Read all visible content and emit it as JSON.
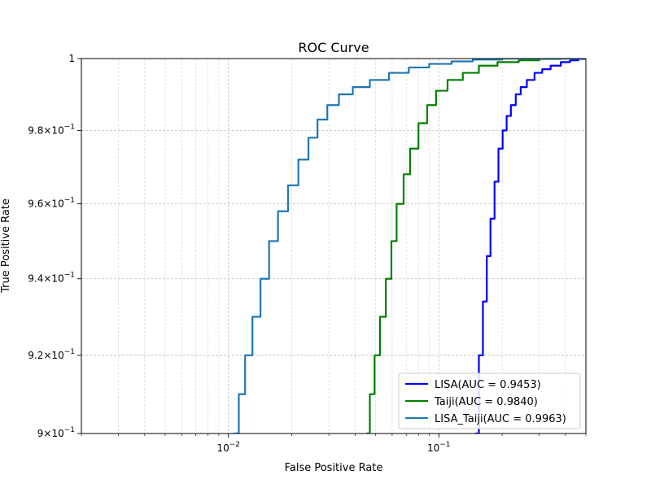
{
  "chart_data": {
    "type": "line",
    "title": "ROC Curve",
    "xlabel": "False Positive Rate",
    "ylabel": "True Positive Rate",
    "x_scale": "log",
    "y_scale": "log",
    "xlim": [
      0.002,
      0.5
    ],
    "ylim": [
      0.9,
      1.0
    ],
    "grid": true,
    "legend_position": "lower-right",
    "x_ticks": [
      {
        "value": 0.01,
        "base": "10",
        "exp": "−2"
      },
      {
        "value": 0.1,
        "base": "10",
        "exp": "−1"
      }
    ],
    "y_ticks": [
      {
        "value": 0.9,
        "mant": "9",
        "exp": "−1"
      },
      {
        "value": 0.92,
        "mant": "9.2",
        "exp": "−1"
      },
      {
        "value": 0.94,
        "mant": "9.4",
        "exp": "−1"
      },
      {
        "value": 0.96,
        "mant": "9.6",
        "exp": "−1"
      },
      {
        "value": 0.98,
        "mant": "9.8",
        "exp": "−1"
      },
      {
        "value": 1.0,
        "label": "1"
      }
    ],
    "series": [
      {
        "name": "LISA(AUC = 0.9453)",
        "color": "#0000ff",
        "x": [
          0.149,
          0.155,
          0.162,
          0.169,
          0.176,
          0.184,
          0.192,
          0.201,
          0.21,
          0.22,
          0.232,
          0.245,
          0.262,
          0.285,
          0.31,
          0.34,
          0.38,
          0.42,
          0.46,
          0.5
        ],
        "y": [
          0.9,
          0.92,
          0.934,
          0.946,
          0.956,
          0.966,
          0.975,
          0.98,
          0.984,
          0.987,
          0.99,
          0.992,
          0.994,
          0.996,
          0.997,
          0.998,
          0.999,
          0.9995,
          0.9999,
          1.0
        ]
      },
      {
        "name": "Taiji(AUC = 0.9840)",
        "color": "#008000",
        "x": [
          0.0452,
          0.047,
          0.0495,
          0.0525,
          0.056,
          0.0595,
          0.063,
          0.068,
          0.073,
          0.08,
          0.088,
          0.097,
          0.11,
          0.13,
          0.155,
          0.19,
          0.24,
          0.3,
          0.38,
          0.5
        ],
        "y": [
          0.9,
          0.91,
          0.92,
          0.93,
          0.94,
          0.95,
          0.96,
          0.968,
          0.975,
          0.982,
          0.987,
          0.991,
          0.994,
          0.996,
          0.998,
          0.999,
          0.9995,
          0.9999,
          1.0,
          1.0
        ]
      },
      {
        "name": "LISA_Taiji(AUC = 0.9963)",
        "color": "#1f77b4",
        "x": [
          0.0106,
          0.0112,
          0.012,
          0.013,
          0.0142,
          0.0156,
          0.0172,
          0.0192,
          0.0215,
          0.024,
          0.0265,
          0.0295,
          0.0335,
          0.039,
          0.047,
          0.058,
          0.072,
          0.09,
          0.115,
          0.145,
          0.2,
          0.3,
          0.5
        ],
        "y": [
          0.9,
          0.91,
          0.92,
          0.93,
          0.94,
          0.95,
          0.958,
          0.965,
          0.972,
          0.978,
          0.983,
          0.987,
          0.99,
          0.992,
          0.994,
          0.996,
          0.9975,
          0.9985,
          0.9992,
          0.9997,
          1.0,
          1.0,
          1.0
        ]
      }
    ]
  }
}
